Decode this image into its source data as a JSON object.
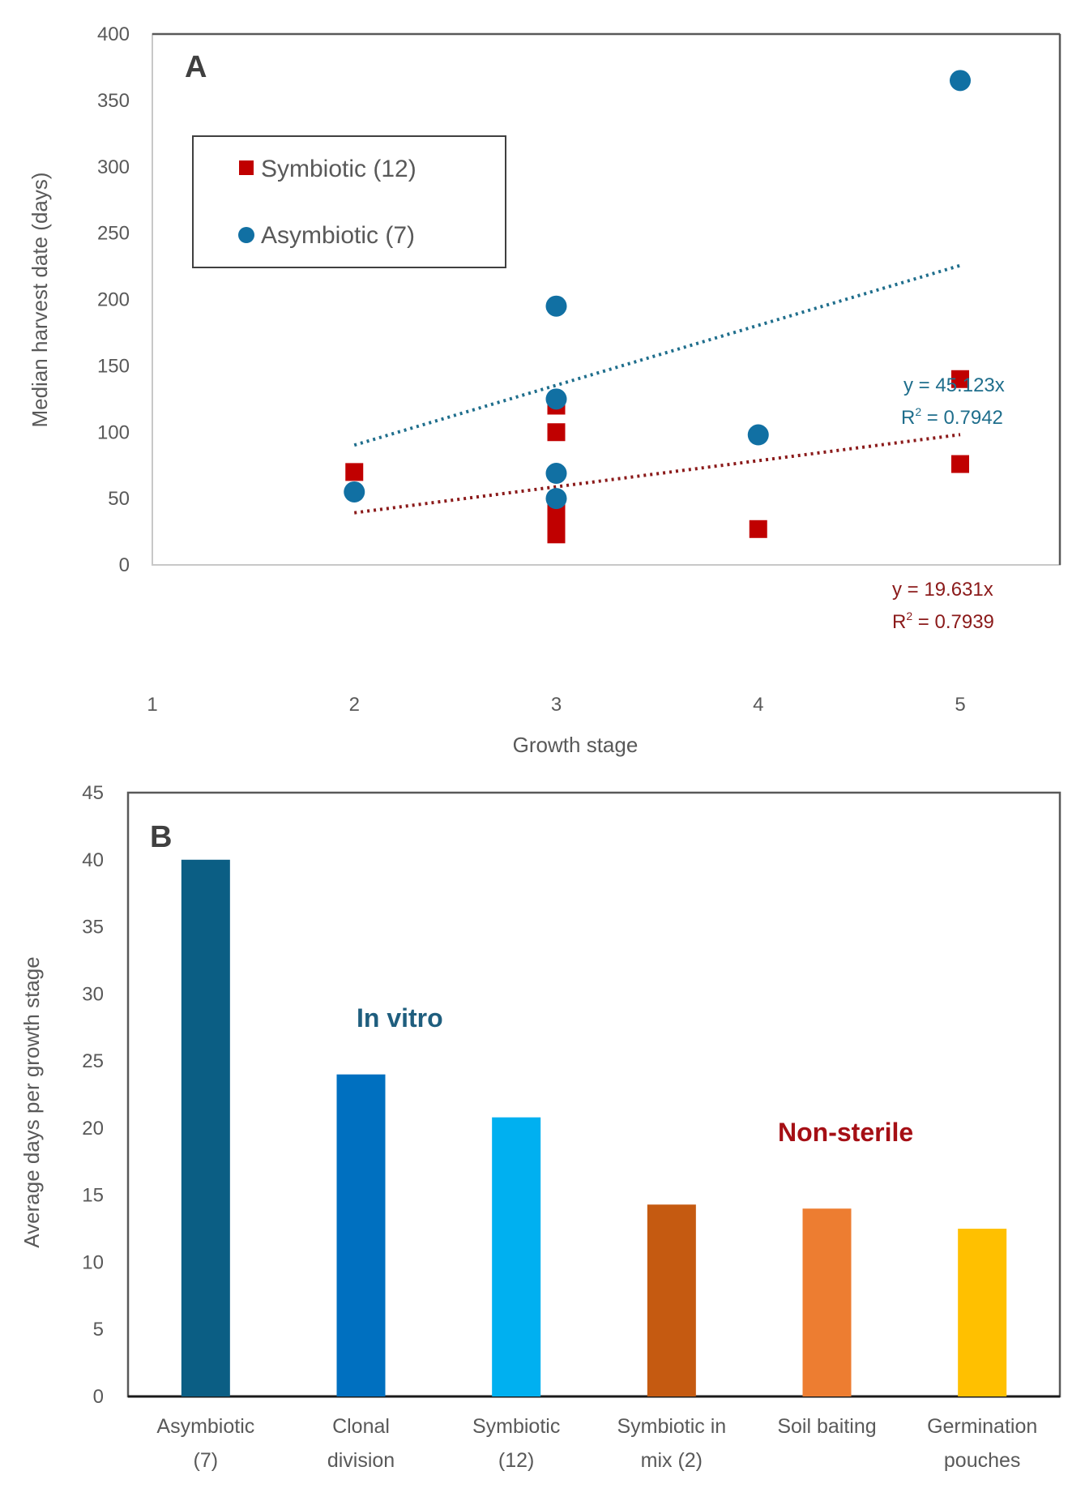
{
  "chart_data": [
    {
      "type": "scatter",
      "panel_label": "A",
      "title": "",
      "xlabel": "Growth stage",
      "ylabel": "Median harvest date (days)",
      "xlim": [
        1,
        5
      ],
      "ylim": [
        0,
        400
      ],
      "x_ticks": [
        "1",
        "2",
        "3",
        "4",
        "5"
      ],
      "y_ticks": [
        "0",
        "50",
        "100",
        "150",
        "200",
        "250",
        "300",
        "350",
        "400"
      ],
      "grid": false,
      "legend_position": "top-left",
      "series": [
        {
          "name": "Symbiotic (12)",
          "marker": "square",
          "color": "#C00000",
          "points": [
            {
              "x": 2,
              "y": 70
            },
            {
              "x": 3,
              "y": 120
            },
            {
              "x": 3,
              "y": 100
            },
            {
              "x": 3,
              "y": 42
            },
            {
              "x": 3,
              "y": 33
            },
            {
              "x": 3,
              "y": 23
            },
            {
              "x": 4,
              "y": 27
            },
            {
              "x": 5,
              "y": 140
            },
            {
              "x": 5,
              "y": 76
            }
          ],
          "trendline": {
            "type": "linear-through-origin",
            "slope": 19.631,
            "x_range": [
              2,
              5
            ],
            "equation": "y = 19.631x",
            "r2_label": "R",
            "r2_sup": "2",
            "r2_value": " = 0.7939",
            "color": "#8B1A1A"
          }
        },
        {
          "name": "Asymbiotic (7)",
          "marker": "circle",
          "color": "#1170A3",
          "points": [
            {
              "x": 2,
              "y": 55
            },
            {
              "x": 3,
              "y": 195
            },
            {
              "x": 3,
              "y": 125
            },
            {
              "x": 3,
              "y": 69
            },
            {
              "x": 3,
              "y": 50
            },
            {
              "x": 4,
              "y": 98
            },
            {
              "x": 5,
              "y": 365
            }
          ],
          "trendline": {
            "type": "linear-through-origin",
            "slope": 45.123,
            "x_range": [
              2,
              5
            ],
            "equation": "y = 45.123x",
            "r2_label": "R",
            "r2_sup": "2",
            "r2_value": " = 0.7942",
            "color": "#1F6E8C"
          }
        }
      ]
    },
    {
      "type": "bar",
      "panel_label": "B",
      "title": "",
      "xlabel": "",
      "ylabel": "Average days per growth stage",
      "ylim": [
        0,
        45
      ],
      "y_ticks": [
        "0",
        "5",
        "10",
        "15",
        "20",
        "25",
        "30",
        "35",
        "40",
        "45"
      ],
      "grid": false,
      "categories": [
        [
          "Asymbiotic",
          "(7)"
        ],
        [
          "Clonal",
          "division"
        ],
        [
          "Symbiotic",
          "(12)"
        ],
        [
          "Symbiotic in",
          "mix (2)"
        ],
        [
          "Soil baiting"
        ],
        [
          "Germination",
          "pouches"
        ]
      ],
      "values": [
        40,
        24,
        20.8,
        14.3,
        14,
        12.5
      ],
      "colors": [
        "#0B5E84",
        "#0070C0",
        "#00B0F0",
        "#C55A11",
        "#ED7D31",
        "#FFC000"
      ],
      "annotations": [
        {
          "text": "In vitro",
          "color": "#1F5E7E",
          "group": "in-vitro"
        },
        {
          "text": "Non-sterile",
          "color": "#A50F15",
          "group": "non-sterile"
        }
      ]
    }
  ]
}
